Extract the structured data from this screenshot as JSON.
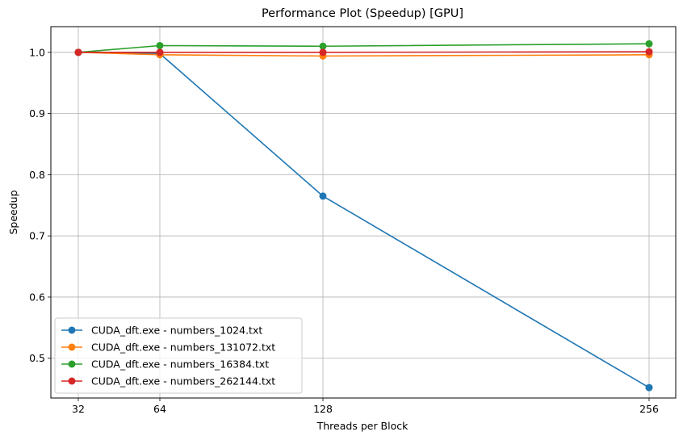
{
  "chart_data": {
    "type": "line",
    "title": "Performance Plot (Speedup) [GPU]",
    "xlabel": "Threads per Block",
    "ylabel": "Speedup",
    "x": [
      32,
      64,
      128,
      256
    ],
    "x_ticks": [
      "32",
      "64",
      "128",
      "256"
    ],
    "y_ticks": [
      "0.5",
      "0.6",
      "0.7",
      "0.8",
      "0.9",
      "1.0"
    ],
    "ylim": [
      0.435,
      1.042
    ],
    "grid": true,
    "legend_position": "lower-left",
    "series": [
      {
        "name": "CUDA_dft.exe - numbers_1024.txt",
        "color": "#1f77b4",
        "values": [
          1.0,
          0.998,
          0.765,
          0.452
        ]
      },
      {
        "name": "CUDA_dft.exe - numbers_131072.txt",
        "color": "#ff7f0e",
        "values": [
          1.0,
          0.996,
          0.994,
          0.996
        ]
      },
      {
        "name": "CUDA_dft.exe - numbers_16384.txt",
        "color": "#2ca02c",
        "values": [
          1.0,
          1.011,
          1.01,
          1.014
        ]
      },
      {
        "name": "CUDA_dft.exe - numbers_262144.txt",
        "color": "#d62728",
        "values": [
          1.0,
          1.0,
          1.0,
          1.001
        ]
      }
    ]
  }
}
